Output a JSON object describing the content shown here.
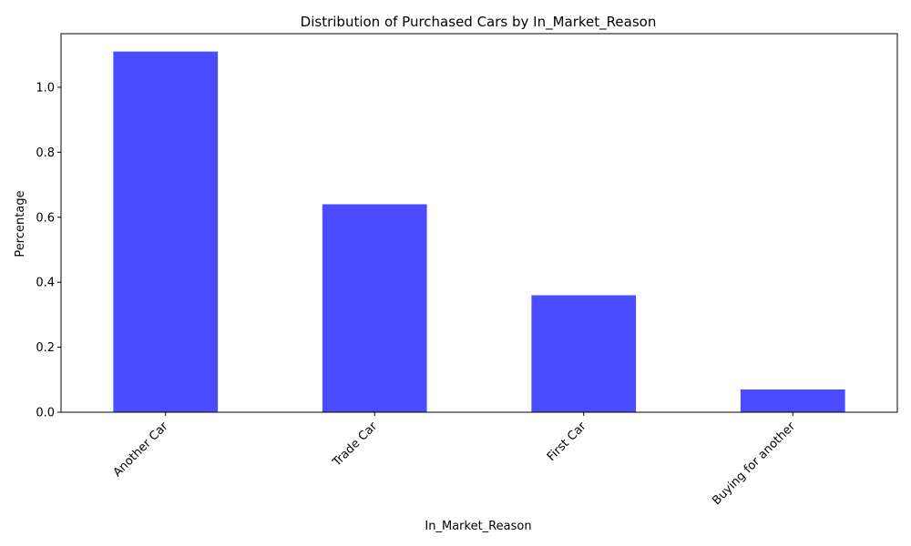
{
  "chart_data": {
    "type": "bar",
    "title": "Distribution of Purchased Cars by In_Market_Reason",
    "xlabel": "In_Market_Reason",
    "ylabel": "Percentage",
    "categories": [
      "Another Car",
      "Trade Car",
      "First Car",
      "Buying for another"
    ],
    "values": [
      1.11,
      0.64,
      0.36,
      0.07
    ],
    "ylim": [
      0,
      1.165
    ],
    "yticks": [
      0.0,
      0.2,
      0.4,
      0.6,
      0.8,
      1.0
    ],
    "ytick_labels": [
      "0.0",
      "0.2",
      "0.4",
      "0.6",
      "0.8",
      "1.0"
    ],
    "bar_color": "#4b4bff",
    "grid": false,
    "legend": "none"
  }
}
